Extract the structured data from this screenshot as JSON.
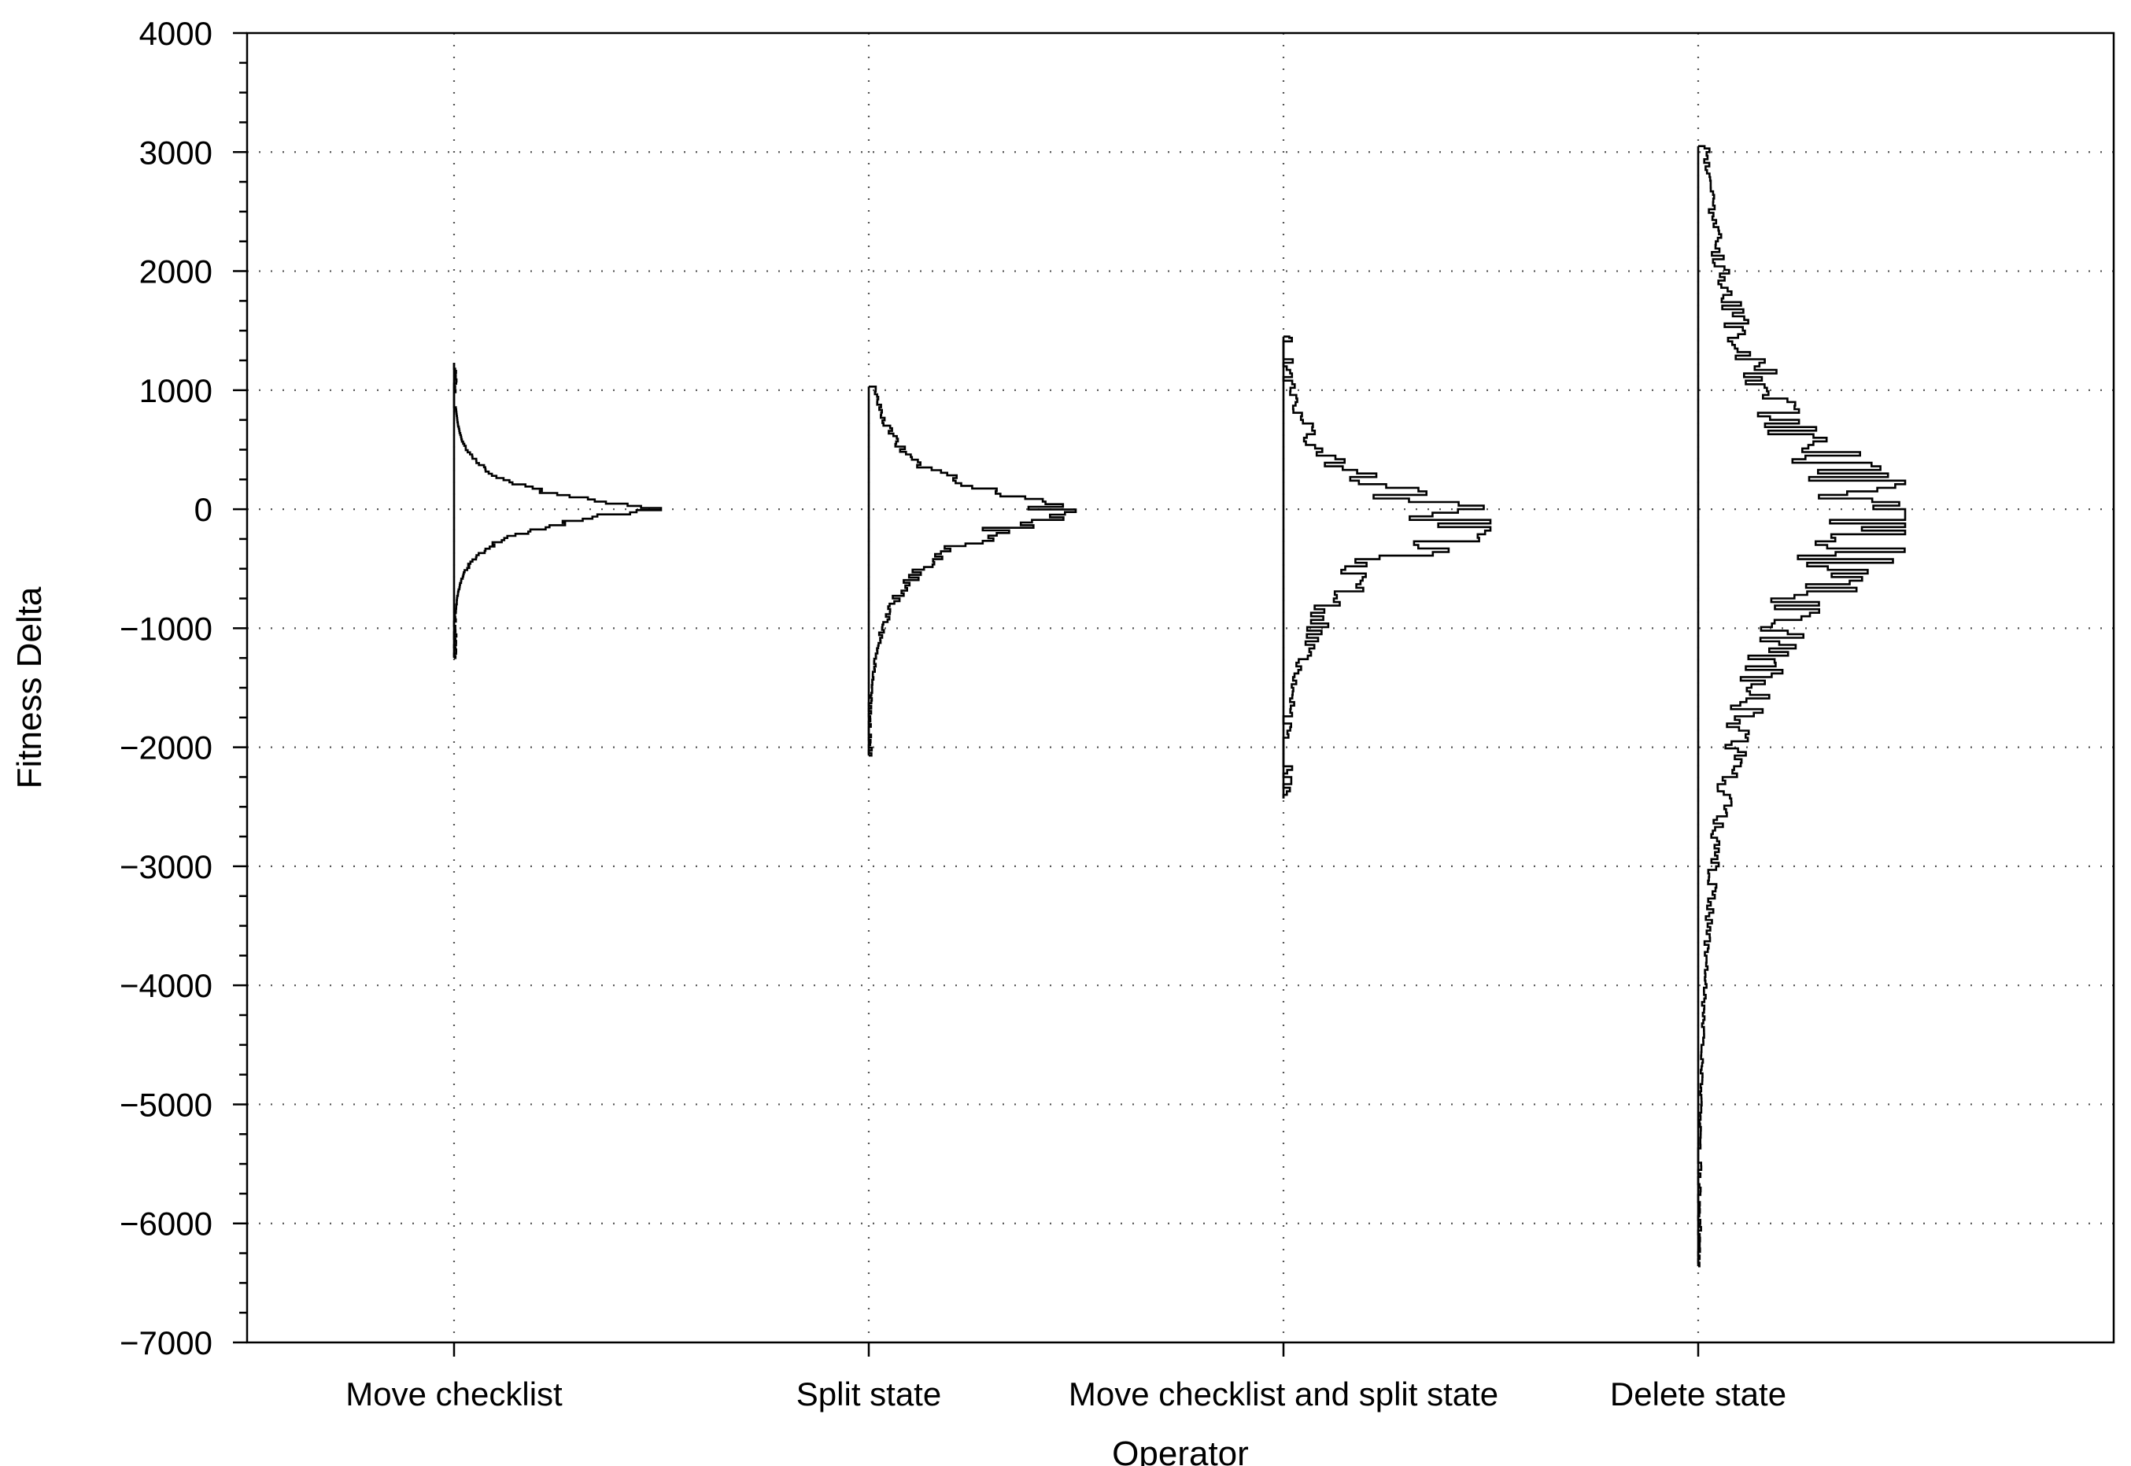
{
  "chart_data": {
    "type": "histogram",
    "orientation": "horizontal-violin",
    "title": "",
    "xlabel": "Operator",
    "ylabel": "Fitness Delta",
    "ylim": [
      -7000,
      4000
    ],
    "yticks": [
      4000,
      3000,
      2000,
      1000,
      0,
      -1000,
      -2000,
      -3000,
      -4000,
      -5000,
      -6000,
      -7000
    ],
    "ytick_labels": [
      "4000",
      "3000",
      "2000",
      "1000",
      "0",
      "−1000",
      "−2000",
      "−3000",
      "−4000",
      "−5000",
      "−6000",
      "−7000"
    ],
    "categories": [
      "Move checklist",
      "Split state",
      "Move checklist and split state",
      "Delete state"
    ],
    "grid": true,
    "series": [
      {
        "category": "Move checklist",
        "min": -1250,
        "max": 1230,
        "mode": 0,
        "peak_width": 1.0,
        "spread": 180,
        "tail_floor": 0.008,
        "bin": 18,
        "noise": 0.18,
        "skew": 0.0,
        "seed": 11
      },
      {
        "category": "Split state",
        "min": -2070,
        "max": 1030,
        "mode": -20,
        "peak_width": 1.0,
        "spread": 330,
        "tail_floor": 0.012,
        "bin": 22,
        "noise": 0.35,
        "skew": 0.1,
        "seed": 23
      },
      {
        "category": "Move checklist and split state",
        "min": -2430,
        "max": 1450,
        "mode": -100,
        "peak_width": 1.0,
        "spread": 420,
        "tail_floor": 0.03,
        "bin": 30,
        "noise": 0.75,
        "skew": 0.15,
        "seed": 37
      },
      {
        "category": "Delete state",
        "min": -6360,
        "max": 3050,
        "mode": -20,
        "peak_width": 1.0,
        "spread": 1050,
        "tail_floor": 0.01,
        "bin": 30,
        "noise": 0.7,
        "skew": 0.1,
        "seed": 53
      }
    ]
  }
}
